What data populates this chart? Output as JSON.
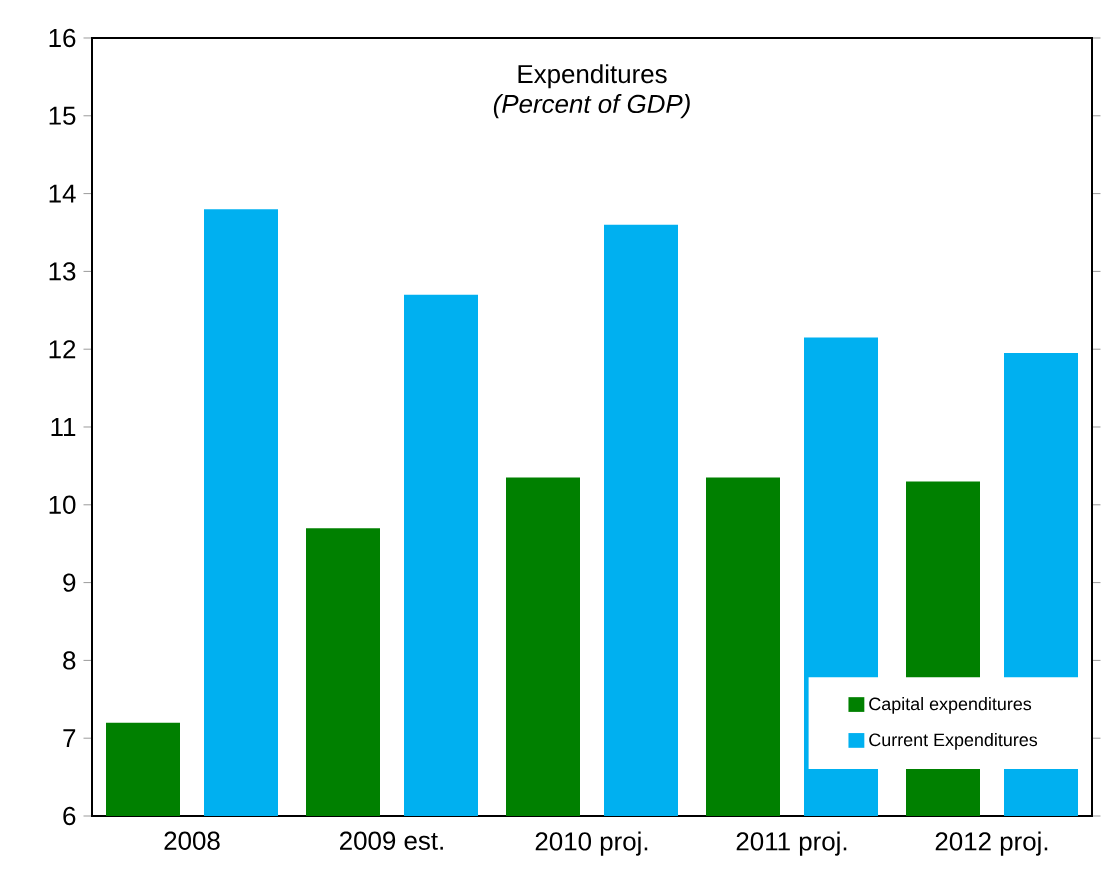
{
  "chart_data": {
    "type": "bar",
    "title": "Expenditures",
    "subtitle": "(Percent of GDP)",
    "categories": [
      "2008",
      "2009 est.",
      "2010 proj.",
      "2011 proj.",
      "2012 proj."
    ],
    "series": [
      {
        "name": "Capital expenditures",
        "color": "#008000",
        "values": [
          7.2,
          9.7,
          10.35,
          10.35,
          10.3
        ]
      },
      {
        "name": "Current Expenditures",
        "color": "#00b0f0",
        "values": [
          13.8,
          12.7,
          13.6,
          12.15,
          11.95
        ]
      }
    ],
    "ylim": [
      6,
      16
    ],
    "yticks": [
      6,
      7,
      8,
      9,
      10,
      11,
      12,
      13,
      14,
      15,
      16
    ],
    "grid": false,
    "legend": "bottom right"
  }
}
